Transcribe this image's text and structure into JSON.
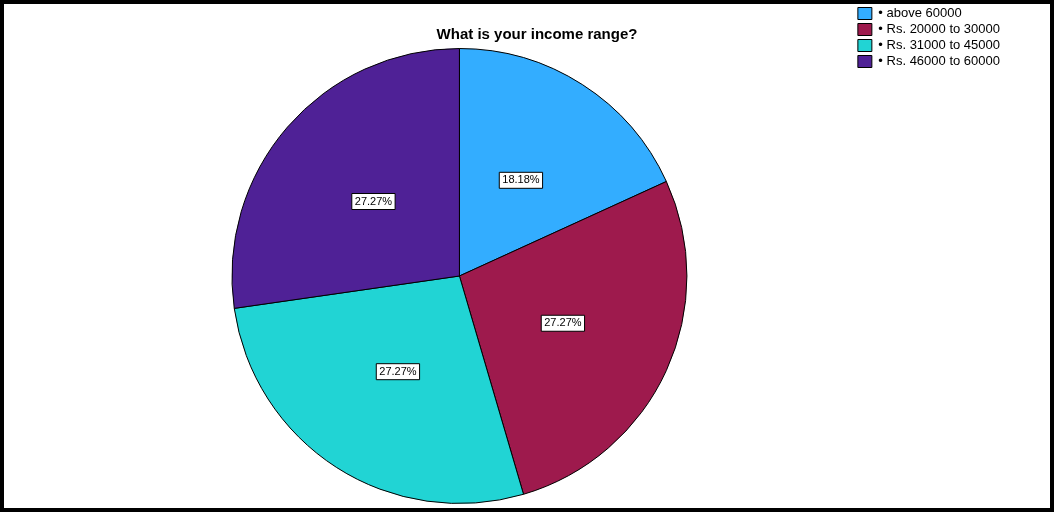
{
  "chart_data": {
    "type": "pie",
    "title": "What is your income range?",
    "categories": [
      "• above 60000",
      "• Rs. 20000 to 30000",
      "• Rs. 31000 to 45000",
      "• Rs. 46000 to 60000"
    ],
    "values": [
      18.18,
      27.27,
      27.27,
      27.27
    ],
    "colors": [
      "#33adff",
      "#9e1a4d",
      "#21d4d4",
      "#4f2196"
    ],
    "value_labels": [
      "18.18%",
      "27.27%",
      "27.27%",
      "27.27%"
    ],
    "legend": "top right"
  }
}
